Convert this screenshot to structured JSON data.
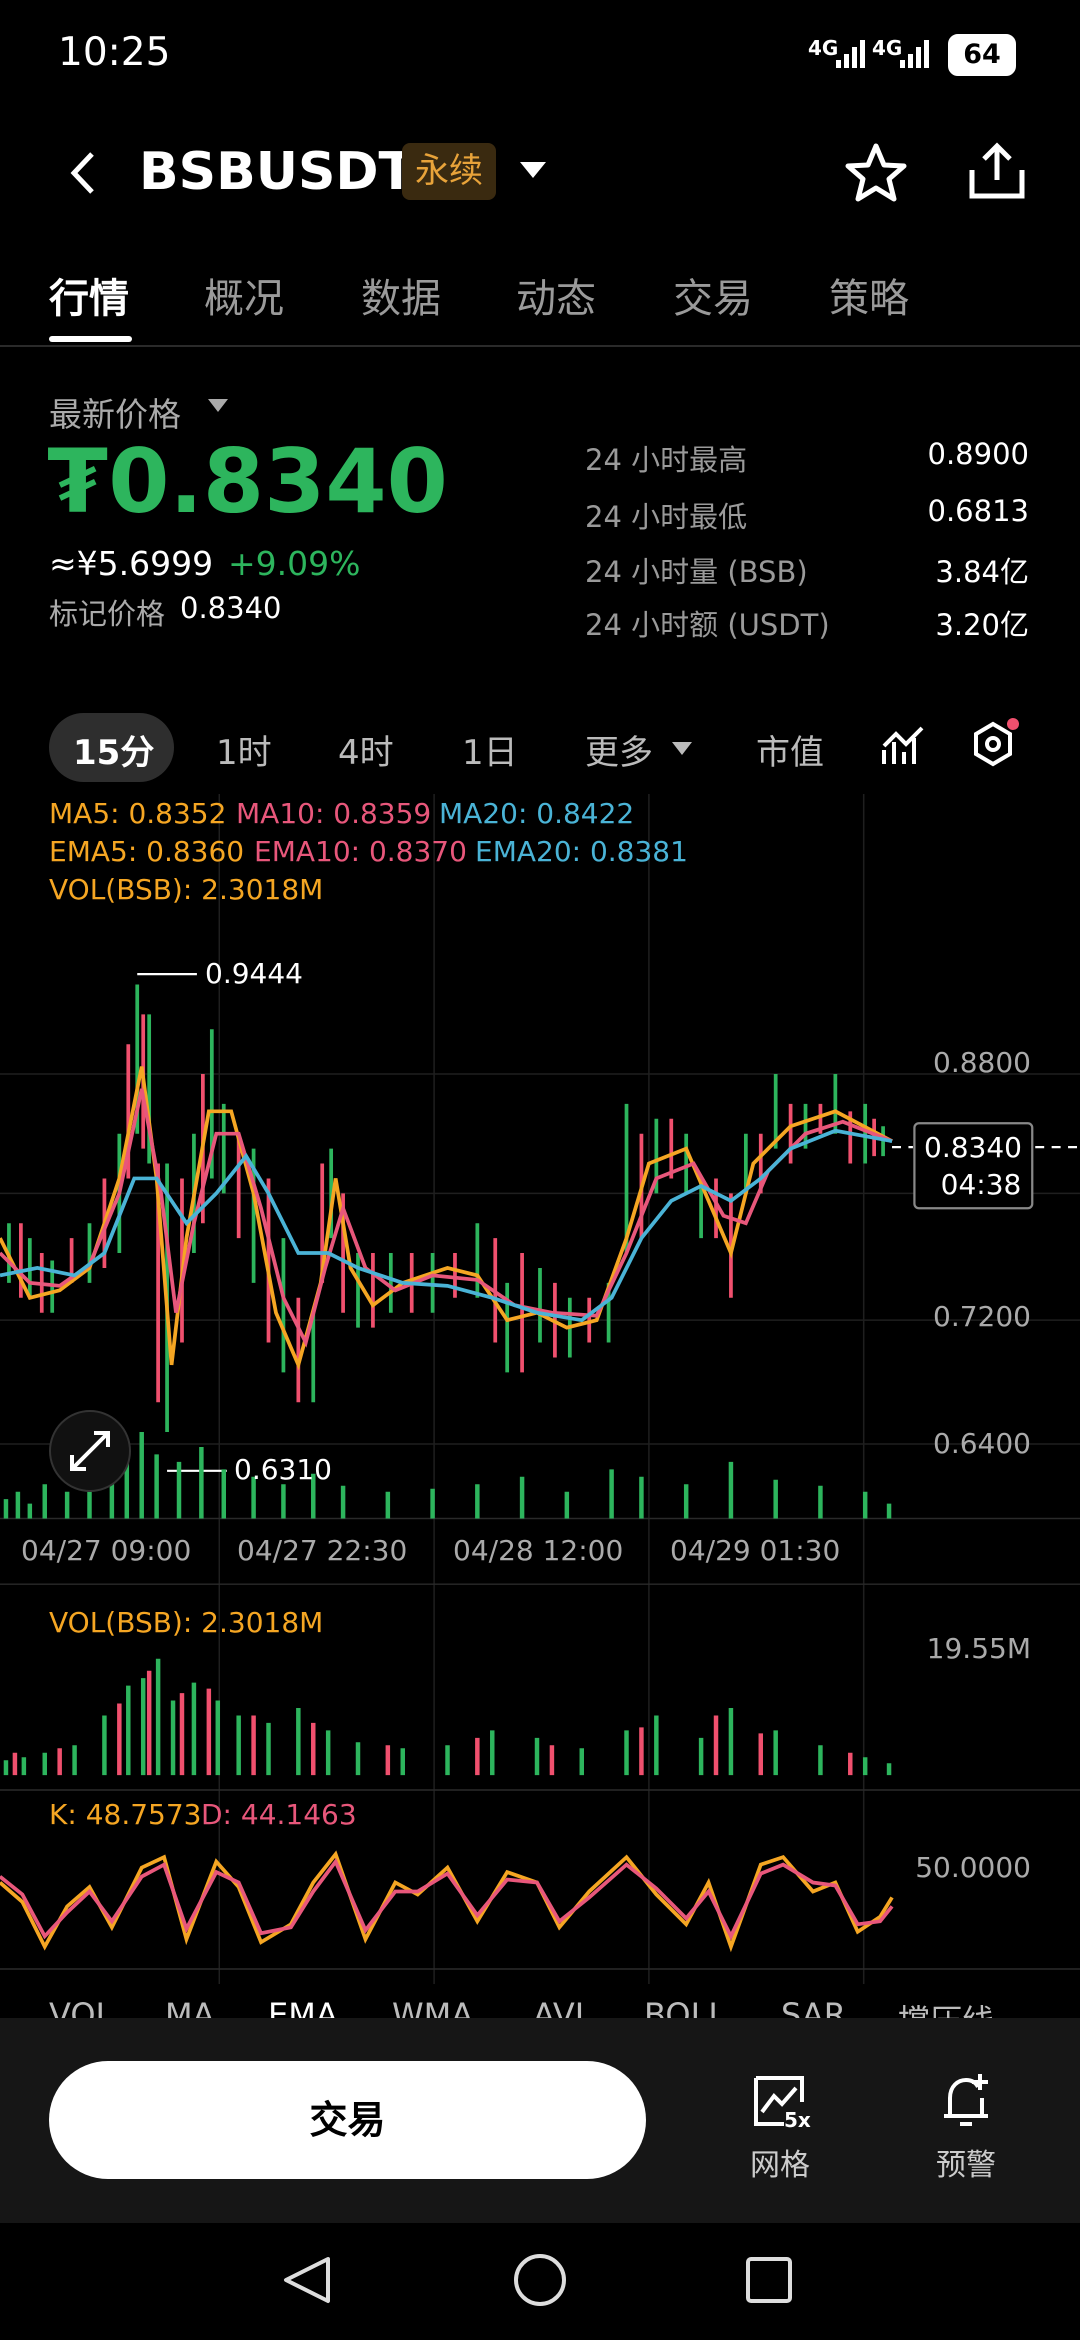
{
  "status_bar": {
    "time": "10:25",
    "network": [
      "4G",
      "4G"
    ],
    "battery": "64"
  },
  "header": {
    "title": "BSBUSDT",
    "badge": "永续"
  },
  "tabs": [
    "行情",
    "概况",
    "数据",
    "动态",
    "交易",
    "策略"
  ],
  "price": {
    "label": "最新价格",
    "last": "₮0.8340",
    "cny": "≈¥5.6999",
    "change": "+9.09%",
    "mark_label": "标记价格",
    "mark": "0.8340"
  },
  "stats": [
    {
      "label": "24 小时最高",
      "value": "0.8900"
    },
    {
      "label": "24 小时最低",
      "value": "0.6813"
    },
    {
      "label": "24 小时量 (BSB)",
      "value": "3.84亿"
    },
    {
      "label": "24 小时额 (USDT)",
      "value": "3.20亿"
    }
  ],
  "intervals": [
    "15分",
    "1时",
    "4时",
    "1日",
    "更多",
    "市值"
  ],
  "chart": {
    "legend": [
      "MA5: 0.8352",
      "MA10: 0.8359",
      "MA20: 0.8422",
      "EMA5: 0.8360",
      "EMA10: 0.8370",
      "EMA20: 0.8381",
      "VOL(BSB): 2.3018M"
    ],
    "high": "0.9444",
    "low": "0.6310",
    "axis": [
      "0.8800",
      "0.7200",
      "0.6400"
    ],
    "current": "0.8340",
    "countdown": "04:38",
    "dates": [
      "04/27 09:00",
      "04/27 22:30",
      "04/28 12:00",
      "04/29 01:30"
    ]
  },
  "volume": {
    "label": "VOL(BSB): 2.3018M",
    "max": "19.55M"
  },
  "kd": {
    "k": "K: 48.7573",
    "d": "D: 44.1463",
    "mid": "50.0000"
  },
  "indicators": [
    "VOL",
    "MA",
    "EMA",
    "WMA",
    "AVL",
    "BOLL",
    "SAR",
    "撑压线"
  ],
  "bottom": {
    "trade": "交易",
    "grid_badge": "5x",
    "grid": "网格",
    "alert": "预警"
  }
}
